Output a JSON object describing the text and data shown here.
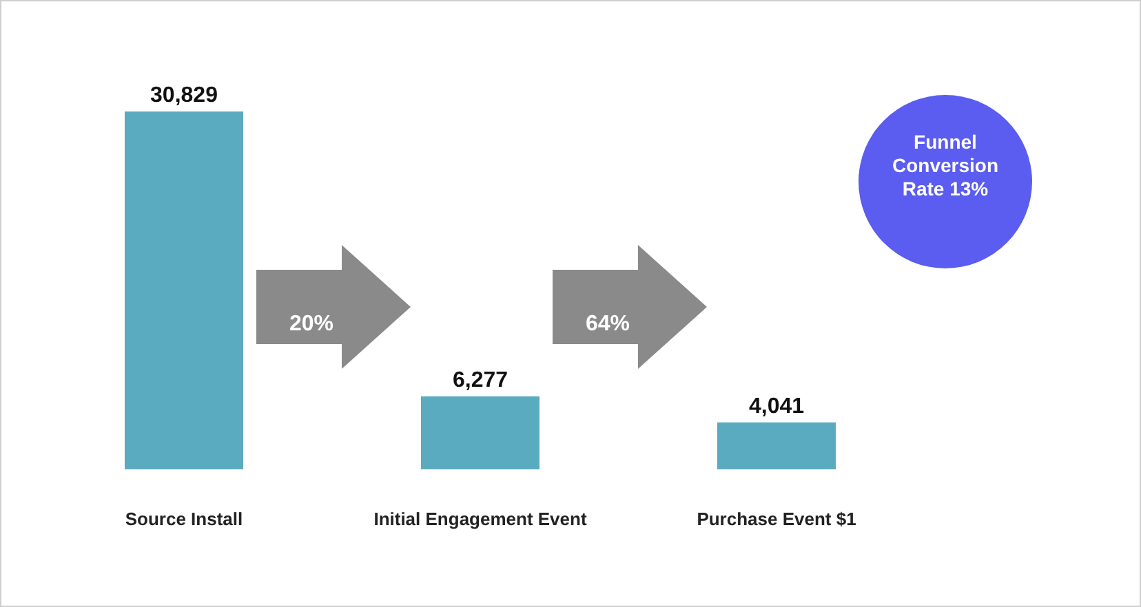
{
  "chart_data": {
    "type": "bar",
    "categories": [
      "Source Install",
      "Initial Engagement Event",
      "Purchase Event $1"
    ],
    "values": [
      30829,
      6277,
      4041
    ],
    "color": "#5aabc0",
    "value_labels": [
      "30,829",
      "6,277",
      "4,041"
    ],
    "annotations": [
      "20%",
      "64%",
      "Funnel Conversion Rate 13%"
    ]
  }
}
